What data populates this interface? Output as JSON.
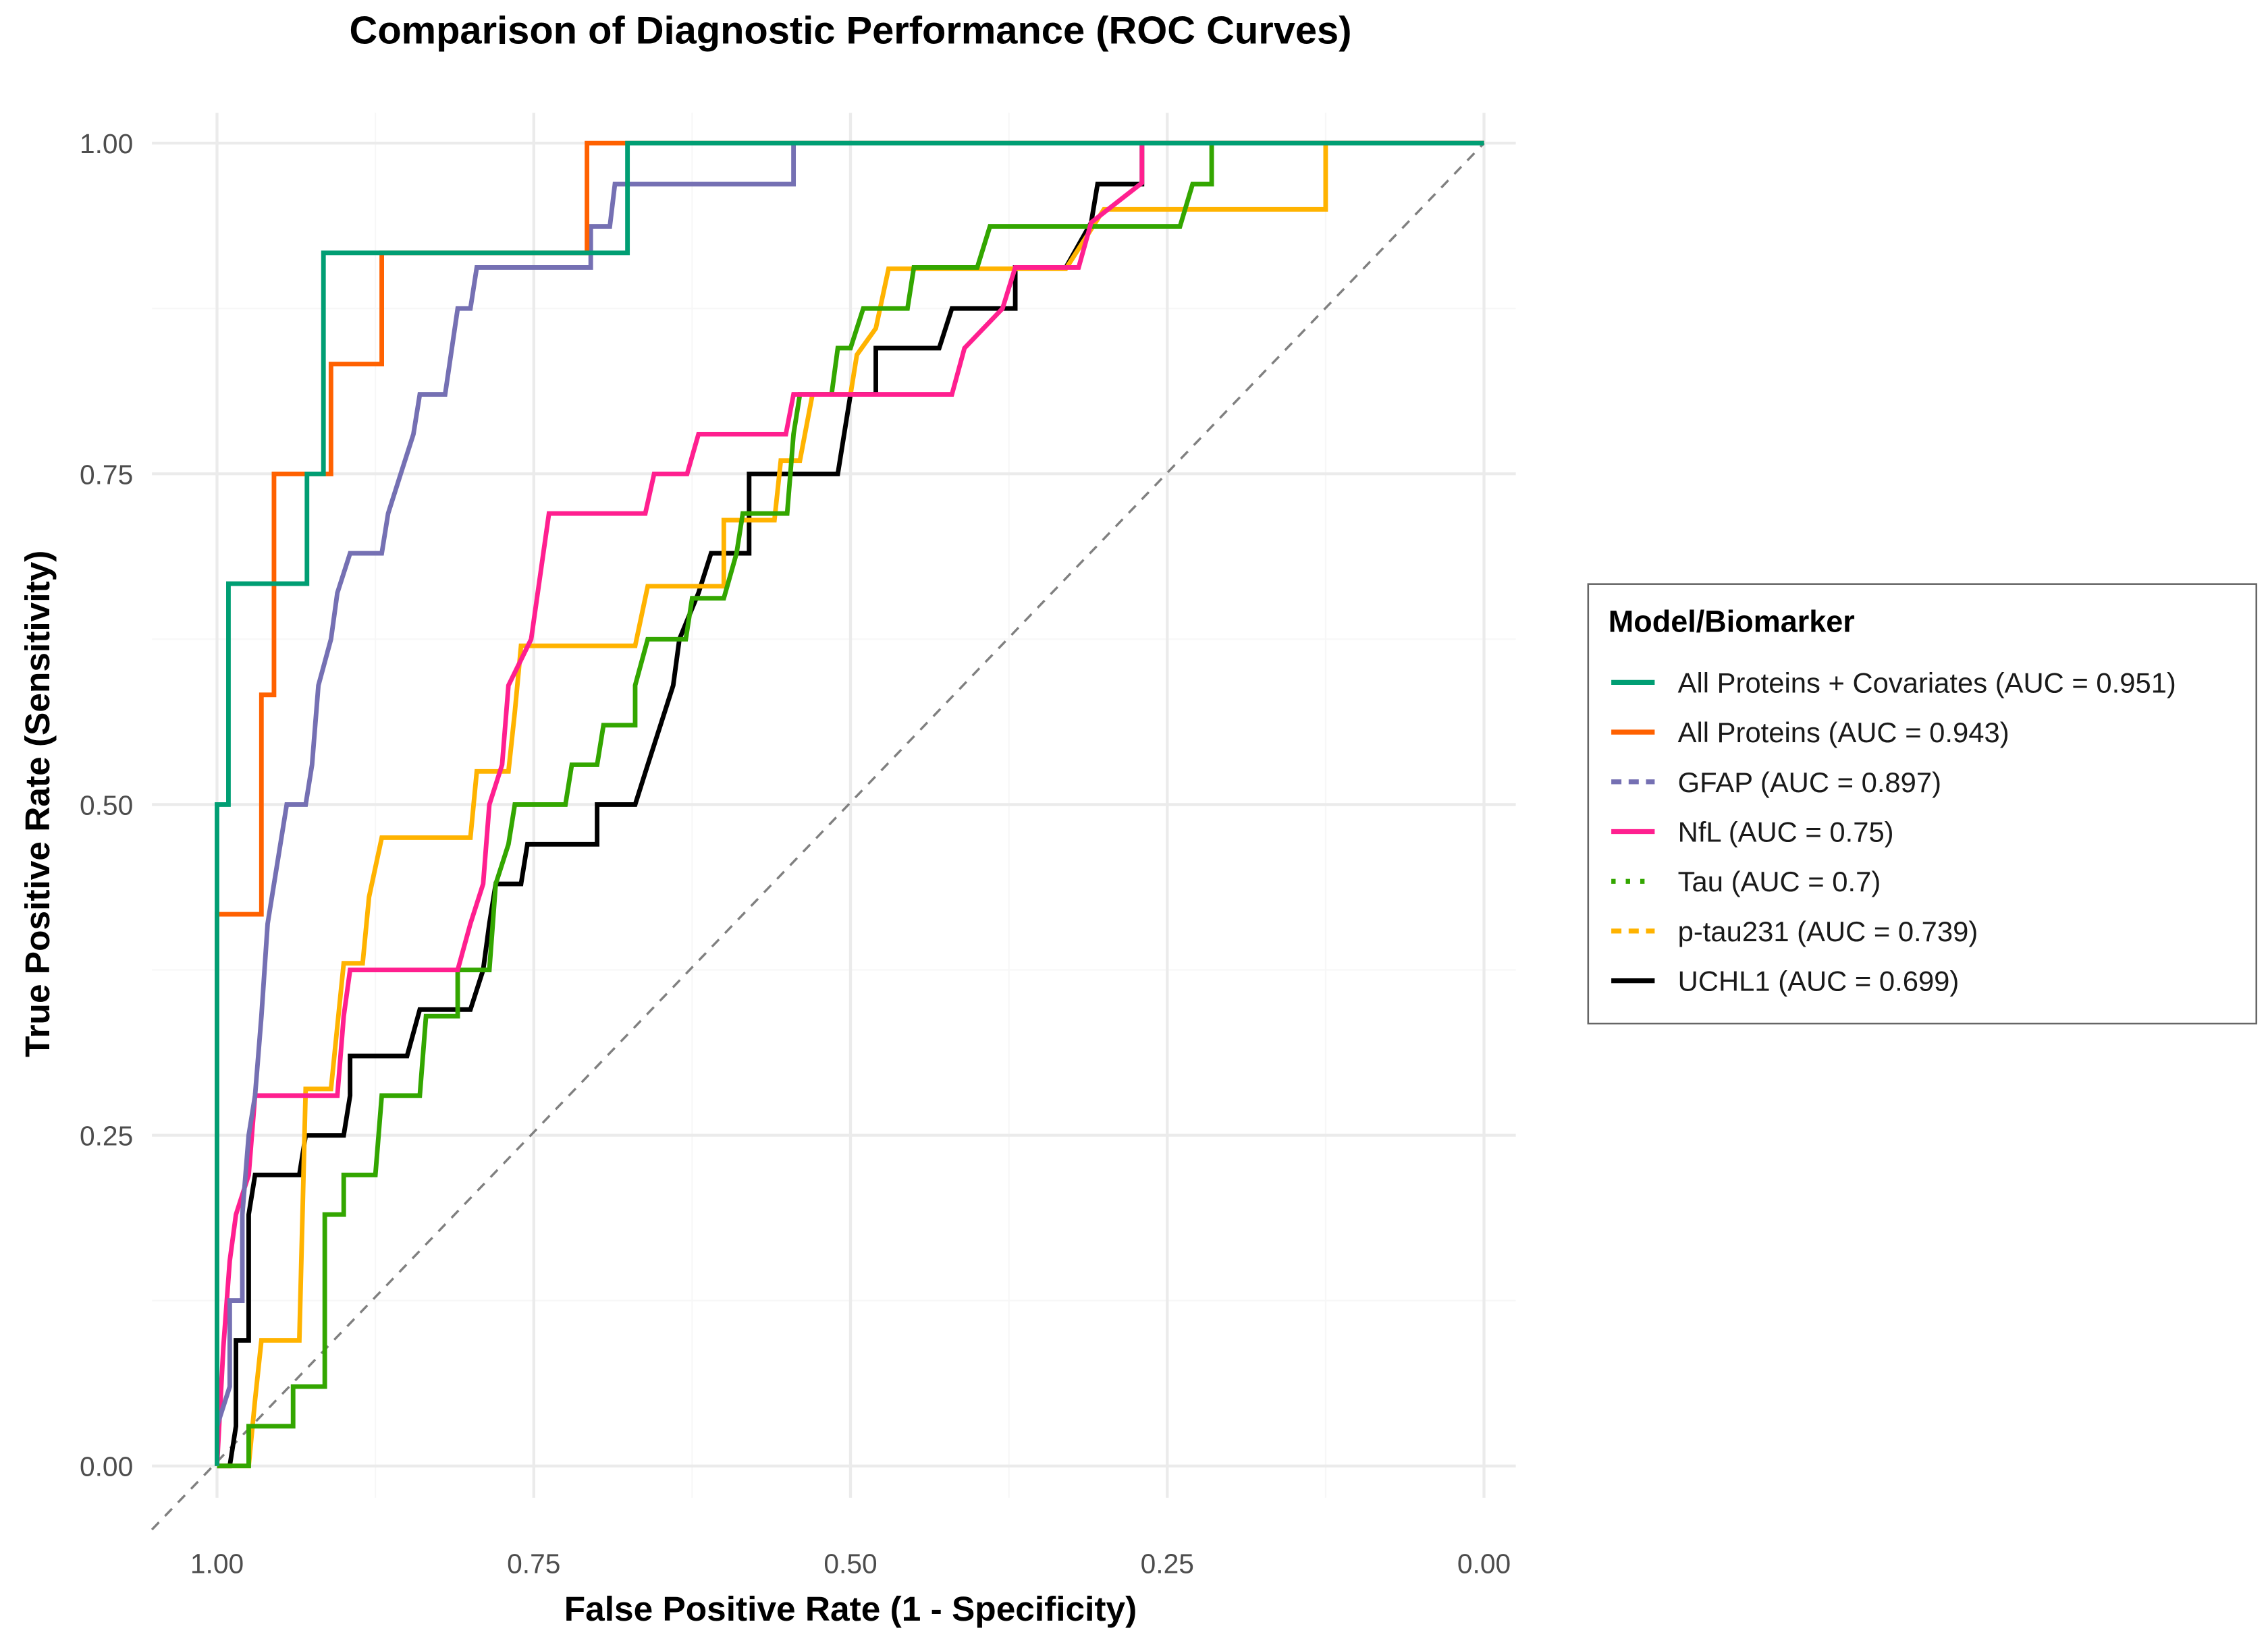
{
  "chart_data": {
    "type": "line",
    "title": "Comparison of Diagnostic Performance (ROC Curves)",
    "xlabel": "False Positive Rate (1 - Specificity)",
    "ylabel": "True Positive Rate (Sensitivity)",
    "xlim": [
      1.0,
      0.0
    ],
    "ylim": [
      0.0,
      1.0
    ],
    "x_reversed": true,
    "x_ticks": [
      "1.00",
      "0.75",
      "0.50",
      "0.25",
      "0.00"
    ],
    "y_ticks": [
      "0.00",
      "0.25",
      "0.50",
      "0.75",
      "1.00"
    ],
    "grid": true,
    "legend_title": "Model/Biomarker",
    "legend_position": "right",
    "reference_line": {
      "style": "dashed",
      "color": "#808080",
      "from": [
        1,
        0
      ],
      "to": [
        0,
        1
      ]
    },
    "series": [
      {
        "name": "All Proteins + Covariates (AUC = 0.951)",
        "color": "#009E73",
        "linetype": "solid",
        "points": [
          [
            1,
            0
          ],
          [
            1,
            0.5
          ],
          [
            0.991,
            0.5
          ],
          [
            0.991,
            0.667
          ],
          [
            0.929,
            0.667
          ],
          [
            0.929,
            0.75
          ],
          [
            0.916,
            0.75
          ],
          [
            0.916,
            0.917
          ],
          [
            0.676,
            0.917
          ],
          [
            0.676,
            1
          ],
          [
            0,
            1
          ]
        ]
      },
      {
        "name": "All Proteins (AUC = 0.943)",
        "color": "#FF6100",
        "linetype": "solid",
        "points": [
          [
            1,
            0
          ],
          [
            1,
            0.417
          ],
          [
            0.965,
            0.417
          ],
          [
            0.965,
            0.583
          ],
          [
            0.955,
            0.583
          ],
          [
            0.955,
            0.75
          ],
          [
            0.91,
            0.75
          ],
          [
            0.91,
            0.833
          ],
          [
            0.87,
            0.833
          ],
          [
            0.87,
            0.917
          ],
          [
            0.708,
            0.917
          ],
          [
            0.708,
            1
          ],
          [
            0,
            1
          ]
        ]
      },
      {
        "name": "GFAP (AUC = 0.897)",
        "color": "#7570B3",
        "linetype": "dashed",
        "points": [
          [
            1,
            0
          ],
          [
            1,
            0.03
          ],
          [
            0.99,
            0.06
          ],
          [
            0.99,
            0.125
          ],
          [
            0.98,
            0.125
          ],
          [
            0.98,
            0.19
          ],
          [
            0.975,
            0.25
          ],
          [
            0.97,
            0.28
          ],
          [
            0.965,
            0.34
          ],
          [
            0.96,
            0.41
          ],
          [
            0.955,
            0.44
          ],
          [
            0.95,
            0.47
          ],
          [
            0.945,
            0.5
          ],
          [
            0.93,
            0.5
          ],
          [
            0.925,
            0.53
          ],
          [
            0.92,
            0.59
          ],
          [
            0.91,
            0.625
          ],
          [
            0.905,
            0.66
          ],
          [
            0.895,
            0.69
          ],
          [
            0.87,
            0.69
          ],
          [
            0.865,
            0.72
          ],
          [
            0.855,
            0.75
          ],
          [
            0.845,
            0.78
          ],
          [
            0.84,
            0.81
          ],
          [
            0.82,
            0.81
          ],
          [
            0.81,
            0.875
          ],
          [
            0.8,
            0.875
          ],
          [
            0.795,
            0.906
          ],
          [
            0.705,
            0.906
          ],
          [
            0.705,
            0.937
          ],
          [
            0.69,
            0.937
          ],
          [
            0.686,
            0.969
          ],
          [
            0.545,
            0.969
          ],
          [
            0.545,
            1
          ],
          [
            0,
            1
          ]
        ]
      },
      {
        "name": "NfL (AUC = 0.75)",
        "color": "#FF1F8F",
        "linetype": "solid",
        "points": [
          [
            1,
            0
          ],
          [
            0.995,
            0.09
          ],
          [
            0.99,
            0.155
          ],
          [
            0.985,
            0.19
          ],
          [
            0.975,
            0.22
          ],
          [
            0.97,
            0.28
          ],
          [
            0.905,
            0.28
          ],
          [
            0.9,
            0.34
          ],
          [
            0.895,
            0.375
          ],
          [
            0.81,
            0.375
          ],
          [
            0.8,
            0.41
          ],
          [
            0.79,
            0.44
          ],
          [
            0.785,
            0.5
          ],
          [
            0.775,
            0.53
          ],
          [
            0.77,
            0.59
          ],
          [
            0.752,
            0.625
          ],
          [
            0.738,
            0.72
          ],
          [
            0.662,
            0.72
          ],
          [
            0.655,
            0.75
          ],
          [
            0.629,
            0.75
          ],
          [
            0.62,
            0.78
          ],
          [
            0.551,
            0.78
          ],
          [
            0.545,
            0.81
          ],
          [
            0.42,
            0.81
          ],
          [
            0.41,
            0.845
          ],
          [
            0.38,
            0.875
          ],
          [
            0.37,
            0.906
          ],
          [
            0.32,
            0.906
          ],
          [
            0.31,
            0.94
          ],
          [
            0.27,
            0.97
          ],
          [
            0.27,
            1
          ],
          [
            0,
            1
          ]
        ]
      },
      {
        "name": "Tau (AUC = 0.7)",
        "color": "#33A600",
        "linetype": "dotted",
        "points": [
          [
            1,
            0
          ],
          [
            0.975,
            0
          ],
          [
            0.975,
            0.03
          ],
          [
            0.94,
            0.03
          ],
          [
            0.94,
            0.06
          ],
          [
            0.915,
            0.06
          ],
          [
            0.915,
            0.19
          ],
          [
            0.9,
            0.19
          ],
          [
            0.9,
            0.22
          ],
          [
            0.875,
            0.22
          ],
          [
            0.87,
            0.28
          ],
          [
            0.84,
            0.28
          ],
          [
            0.835,
            0.34
          ],
          [
            0.81,
            0.34
          ],
          [
            0.81,
            0.375
          ],
          [
            0.785,
            0.375
          ],
          [
            0.78,
            0.44
          ],
          [
            0.77,
            0.47
          ],
          [
            0.765,
            0.5
          ],
          [
            0.725,
            0.5
          ],
          [
            0.72,
            0.53
          ],
          [
            0.7,
            0.53
          ],
          [
            0.695,
            0.56
          ],
          [
            0.67,
            0.56
          ],
          [
            0.67,
            0.59
          ],
          [
            0.66,
            0.625
          ],
          [
            0.63,
            0.625
          ],
          [
            0.625,
            0.656
          ],
          [
            0.6,
            0.656
          ],
          [
            0.59,
            0.69
          ],
          [
            0.585,
            0.72
          ],
          [
            0.55,
            0.72
          ],
          [
            0.545,
            0.78
          ],
          [
            0.54,
            0.81
          ],
          [
            0.515,
            0.81
          ],
          [
            0.51,
            0.845
          ],
          [
            0.5,
            0.845
          ],
          [
            0.49,
            0.875
          ],
          [
            0.455,
            0.875
          ],
          [
            0.45,
            0.906
          ],
          [
            0.4,
            0.906
          ],
          [
            0.39,
            0.937
          ],
          [
            0.24,
            0.937
          ],
          [
            0.23,
            0.969
          ],
          [
            0.215,
            0.969
          ],
          [
            0.215,
            1
          ],
          [
            0,
            1
          ]
        ]
      },
      {
        "name": "p-tau231 (AUC = 0.739)",
        "color": "#FFB300",
        "linetype": "dashed",
        "points": [
          [
            1,
            0
          ],
          [
            0.975,
            0
          ],
          [
            0.97,
            0.05
          ],
          [
            0.965,
            0.095
          ],
          [
            0.935,
            0.095
          ],
          [
            0.93,
            0.285
          ],
          [
            0.91,
            0.285
          ],
          [
            0.9,
            0.38
          ],
          [
            0.885,
            0.38
          ],
          [
            0.88,
            0.43
          ],
          [
            0.87,
            0.475
          ],
          [
            0.8,
            0.475
          ],
          [
            0.795,
            0.525
          ],
          [
            0.77,
            0.525
          ],
          [
            0.765,
            0.57
          ],
          [
            0.76,
            0.62
          ],
          [
            0.67,
            0.62
          ],
          [
            0.66,
            0.665
          ],
          [
            0.6,
            0.665
          ],
          [
            0.6,
            0.715
          ],
          [
            0.56,
            0.715
          ],
          [
            0.555,
            0.76
          ],
          [
            0.54,
            0.76
          ],
          [
            0.53,
            0.81
          ],
          [
            0.5,
            0.81
          ],
          [
            0.495,
            0.84
          ],
          [
            0.48,
            0.86
          ],
          [
            0.47,
            0.905
          ],
          [
            0.33,
            0.905
          ],
          [
            0.3,
            0.95
          ],
          [
            0.125,
            0.95
          ],
          [
            0.125,
            1
          ],
          [
            0,
            1
          ]
        ]
      },
      {
        "name": "UCHL1 (AUC = 0.699)",
        "color": "#000000",
        "linetype": "solid",
        "points": [
          [
            1,
            0
          ],
          [
            0.99,
            0
          ],
          [
            0.985,
            0.03
          ],
          [
            0.985,
            0.095
          ],
          [
            0.975,
            0.095
          ],
          [
            0.975,
            0.19
          ],
          [
            0.97,
            0.22
          ],
          [
            0.935,
            0.22
          ],
          [
            0.93,
            0.25
          ],
          [
            0.9,
            0.25
          ],
          [
            0.895,
            0.28
          ],
          [
            0.895,
            0.31
          ],
          [
            0.85,
            0.31
          ],
          [
            0.84,
            0.345
          ],
          [
            0.8,
            0.345
          ],
          [
            0.79,
            0.375
          ],
          [
            0.785,
            0.41
          ],
          [
            0.78,
            0.44
          ],
          [
            0.76,
            0.44
          ],
          [
            0.755,
            0.47
          ],
          [
            0.7,
            0.47
          ],
          [
            0.7,
            0.5
          ],
          [
            0.67,
            0.5
          ],
          [
            0.66,
            0.53
          ],
          [
            0.65,
            0.56
          ],
          [
            0.64,
            0.59
          ],
          [
            0.635,
            0.625
          ],
          [
            0.62,
            0.66
          ],
          [
            0.61,
            0.69
          ],
          [
            0.58,
            0.69
          ],
          [
            0.58,
            0.75
          ],
          [
            0.51,
            0.75
          ],
          [
            0.505,
            0.78
          ],
          [
            0.5,
            0.81
          ],
          [
            0.48,
            0.81
          ],
          [
            0.48,
            0.845
          ],
          [
            0.43,
            0.845
          ],
          [
            0.42,
            0.875
          ],
          [
            0.37,
            0.875
          ],
          [
            0.37,
            0.906
          ],
          [
            0.33,
            0.906
          ],
          [
            0.31,
            0.94
          ],
          [
            0.305,
            0.969
          ],
          [
            0.27,
            0.969
          ],
          [
            0.27,
            1
          ],
          [
            0,
            1
          ]
        ]
      }
    ]
  }
}
